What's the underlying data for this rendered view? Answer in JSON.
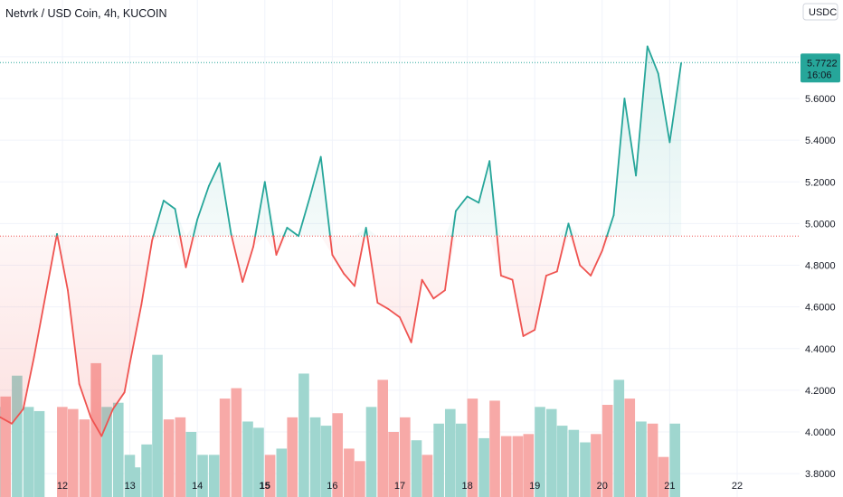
{
  "header": {
    "title": "Netvrk / USD Coin, 4h, KUCOIN",
    "currency_button": "USDC"
  },
  "price_badge": {
    "price": "5.7722",
    "countdown": "16:06"
  },
  "colors": {
    "up": "#26a69a",
    "down": "#ef5350",
    "up_fill": "#26a69a",
    "down_fill": "#ef5350",
    "volume_up": "#9fd6cf",
    "volume_down": "#f7a9a7",
    "grid": "#f0f3fa",
    "badge_bg": "#26a69a"
  },
  "chart_data": {
    "type": "line",
    "symbol": "Netvrk / USD Coin",
    "interval": "4h",
    "exchange": "KUCOIN",
    "currency": "USDC",
    "baseline": 4.94,
    "last_price": 5.7722,
    "ylim": [
      3.8,
      5.95
    ],
    "y_ticks": [
      "3.8000",
      "4.0000",
      "4.2000",
      "4.4000",
      "4.6000",
      "4.8000",
      "5.0000",
      "5.2000",
      "5.4000",
      "5.6000",
      "5.8000"
    ],
    "x_ticks": [
      "12",
      "13",
      "14",
      "15",
      "16",
      "17",
      "18",
      "19",
      "20",
      "21",
      "22"
    ],
    "x_domain_days": [
      11.07,
      22.23
    ],
    "grid": true,
    "series": [
      {
        "x": [
          11.0,
          11.08,
          11.25,
          11.42,
          11.58,
          11.92,
          12.08,
          12.25,
          12.42,
          12.58,
          12.75,
          12.92,
          13.0,
          13.17,
          13.33,
          13.5,
          13.67,
          13.83,
          14.0,
          14.17,
          14.33,
          14.5,
          14.67,
          14.83,
          15.0,
          15.17,
          15.33,
          15.5,
          15.67,
          15.83,
          16.0,
          16.17,
          16.33,
          16.5,
          16.67,
          16.83,
          17.0,
          17.17,
          17.33,
          17.5,
          17.67,
          17.83,
          18.0,
          18.17,
          18.33,
          18.5,
          18.67,
          18.83,
          19.0,
          19.17,
          19.33,
          19.5,
          19.67,
          19.83,
          20.0,
          20.17,
          20.33,
          20.5,
          20.67,
          20.83,
          21.0,
          21.17
        ],
        "y": [
          4.08,
          4.07,
          4.04,
          4.11,
          4.36,
          4.95,
          4.68,
          4.23,
          4.07,
          3.98,
          4.11,
          4.19,
          4.33,
          4.61,
          4.92,
          5.11,
          5.07,
          4.79,
          5.02,
          5.18,
          5.29,
          4.95,
          4.72,
          4.89,
          5.2,
          4.85,
          4.98,
          4.94,
          5.13,
          5.32,
          4.85,
          4.76,
          4.7,
          4.98,
          4.62,
          4.59,
          4.55,
          4.43,
          4.73,
          4.64,
          4.68,
          5.06,
          5.13,
          5.1,
          5.3,
          4.75,
          4.73,
          4.46,
          4.49,
          4.75,
          4.77,
          5.0,
          4.8,
          4.75,
          4.87,
          5.04,
          5.6,
          5.23,
          5.85,
          5.72,
          5.39,
          5.77
        ]
      },
      {
        "name": "Volume",
        "values": [
          4.12,
          4.17,
          4.27,
          4.12,
          4.1,
          4.12,
          4.11,
          4.06,
          4.33,
          4.12,
          4.14,
          3.89,
          3.83,
          3.94,
          4.37,
          4.06,
          4.07,
          4.0,
          3.89,
          3.89,
          4.16,
          4.21,
          4.05,
          4.02,
          3.89,
          3.92,
          4.07,
          4.28,
          4.07,
          4.03,
          4.09,
          3.92,
          3.86,
          4.12,
          4.25,
          4.0,
          4.07,
          3.96,
          3.89,
          4.04,
          4.11,
          4.04,
          4.16,
          3.97,
          4.15,
          3.98,
          3.98,
          3.99,
          4.12,
          4.11,
          4.03,
          4.01,
          3.95,
          3.99,
          4.13,
          4.25,
          4.16,
          4.05,
          4.04,
          3.88,
          4.04
        ],
        "directions": [
          "u",
          "d",
          "u",
          "u",
          "u",
          "d",
          "d",
          "d",
          "d",
          "u",
          "u",
          "u",
          "u",
          "u",
          "u",
          "d",
          "d",
          "u",
          "u",
          "u",
          "d",
          "d",
          "u",
          "u",
          "d",
          "u",
          "d",
          "u",
          "u",
          "u",
          "d",
          "d",
          "d",
          "u",
          "d",
          "d",
          "d",
          "u",
          "d",
          "u",
          "u",
          "u",
          "d",
          "u",
          "d",
          "d",
          "d",
          "d",
          "u",
          "u",
          "u",
          "u",
          "u",
          "d",
          "d",
          "u",
          "d",
          "u",
          "d",
          "d",
          "u"
        ]
      }
    ]
  }
}
